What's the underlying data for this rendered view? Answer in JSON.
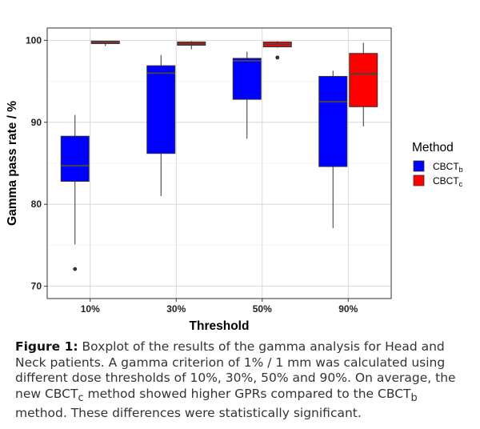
{
  "chart_data": {
    "type": "boxplot",
    "xlabel": "Threshold",
    "ylabel": "Gamma pass rate / %",
    "categories": [
      "10%",
      "30%",
      "50%",
      "90%"
    ],
    "ylim": [
      68.5,
      101.5
    ],
    "yticks": [
      70,
      80,
      90,
      100
    ],
    "grid": true,
    "legend": {
      "title": "Method",
      "position": "right"
    },
    "series": [
      {
        "name": "CBCT",
        "subscript": "b",
        "color": "#0000ff",
        "boxes": [
          {
            "category": "10%",
            "whisker_low": 75.1,
            "q1": 82.8,
            "median": 84.7,
            "q3": 88.3,
            "whisker_high": 90.9,
            "outliers": [
              72.1
            ]
          },
          {
            "category": "30%",
            "whisker_low": 81.0,
            "q1": 86.2,
            "median": 96.0,
            "q3": 96.9,
            "whisker_high": 98.2,
            "outliers": []
          },
          {
            "category": "50%",
            "whisker_low": 88.0,
            "q1": 92.8,
            "median": 97.5,
            "q3": 97.8,
            "whisker_high": 98.6,
            "outliers": []
          },
          {
            "category": "90%",
            "whisker_low": 77.1,
            "q1": 84.6,
            "median": 92.5,
            "q3": 95.6,
            "whisker_high": 96.3,
            "outliers": []
          }
        ]
      },
      {
        "name": "CBCT",
        "subscript": "c",
        "color": "#ff0000",
        "boxes": [
          {
            "category": "10%",
            "whisker_low": 99.3,
            "q1": 99.6,
            "median": 99.8,
            "q3": 99.9,
            "whisker_high": 99.9,
            "outliers": []
          },
          {
            "category": "30%",
            "whisker_low": 98.9,
            "q1": 99.4,
            "median": 99.6,
            "q3": 99.8,
            "whisker_high": 99.9,
            "outliers": []
          },
          {
            "category": "50%",
            "whisker_low": 99.1,
            "q1": 99.2,
            "median": 99.5,
            "q3": 99.8,
            "whisker_high": 99.9,
            "outliers": [
              97.9
            ]
          },
          {
            "category": "90%",
            "whisker_low": 89.5,
            "q1": 91.9,
            "median": 95.9,
            "q3": 98.4,
            "whisker_high": 99.7,
            "outliers": []
          }
        ]
      }
    ]
  },
  "caption": {
    "label": "Figure 1:",
    "text_1": " Boxplot of the results of the gamma analysis for Head and Neck patients. A gamma criterion of 1% / 1 mm was calculated using different dose thresholds of 10%, 30%, 50% and 90%. On average, the new CBCT",
    "sub_1": "c",
    "text_2": " method showed higher GPRs compared to the CBCT",
    "sub_2": "b",
    "text_3": " method. These differences were statistically significant."
  }
}
